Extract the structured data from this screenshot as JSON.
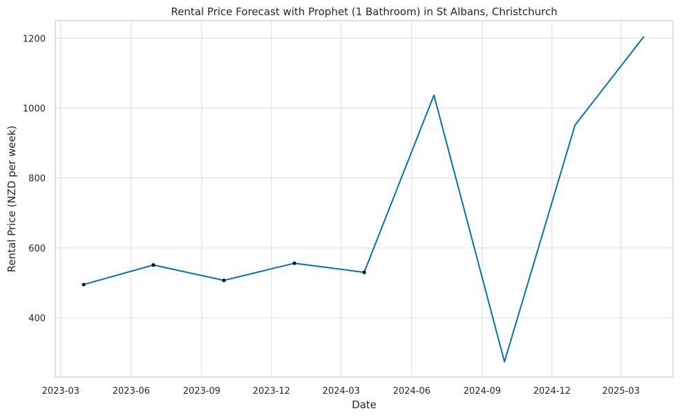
{
  "chart_data": {
    "type": "line",
    "title": "Rental Price Forecast with Prophet (1 Bathroom) in St Albans, Christchurch",
    "xlabel": "Date",
    "ylabel": "Rental Price (NZD per week)",
    "x_ticks": [
      "2023-03",
      "2023-06",
      "2023-09",
      "2023-12",
      "2024-03",
      "2024-06",
      "2024-09",
      "2024-12",
      "2025-03"
    ],
    "y_ticks": [
      400,
      600,
      800,
      1000,
      1200
    ],
    "ylim": [
      230,
      1250
    ],
    "xlim": [
      "2023-02-22",
      "2025-05-08"
    ],
    "grid": true,
    "series": [
      {
        "color": "#0072b2",
        "points": [
          {
            "x": "2023-03-31",
            "y": 495
          },
          {
            "x": "2023-06-30",
            "y": 551
          },
          {
            "x": "2023-09-30",
            "y": 507
          },
          {
            "x": "2023-12-31",
            "y": 556
          },
          {
            "x": "2024-03-31",
            "y": 530
          },
          {
            "x": "2024-06-30",
            "y": 1037
          },
          {
            "x": "2024-09-30",
            "y": 274
          },
          {
            "x": "2024-12-31",
            "y": 951
          },
          {
            "x": "2025-03-31",
            "y": 1205
          }
        ]
      }
    ],
    "observed": {
      "color": "#000000",
      "points": [
        {
          "x": "2023-03-31",
          "y": 495
        },
        {
          "x": "2023-06-30",
          "y": 551
        },
        {
          "x": "2023-09-30",
          "y": 507
        },
        {
          "x": "2023-12-31",
          "y": 556
        },
        {
          "x": "2024-03-31",
          "y": 530
        }
      ]
    }
  }
}
